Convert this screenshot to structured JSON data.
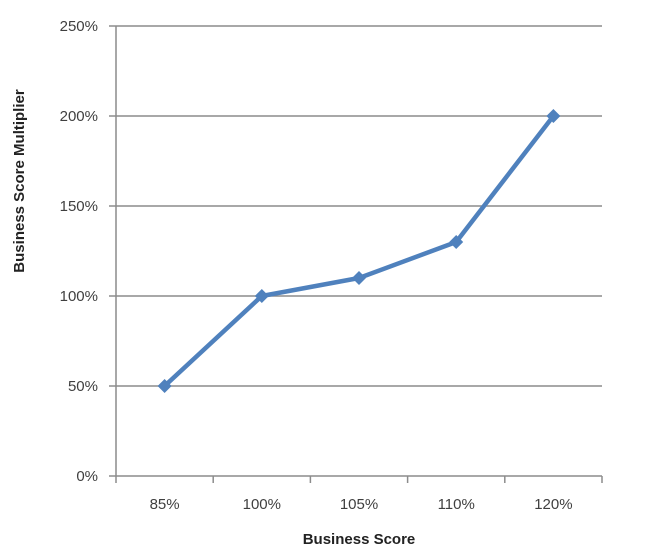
{
  "chart_data": {
    "type": "line",
    "title": "",
    "xlabel": "Business Score",
    "ylabel": "Business Score Multiplier",
    "categories": [
      "85%",
      "100%",
      "105%",
      "110%",
      "120%"
    ],
    "series": [
      {
        "values": [
          50,
          100,
          110,
          130,
          200
        ]
      }
    ],
    "ylim": [
      0,
      250
    ],
    "yticks": [
      0,
      50,
      100,
      150,
      200,
      250
    ],
    "ytick_labels": [
      "0%",
      "50%",
      "100%",
      "150%",
      "200%",
      "250%"
    ],
    "grid": true,
    "legend": "none",
    "colors": {
      "series": "#4f81bd",
      "grid": "#8c8c8c",
      "axis": "#8c8c8c"
    }
  }
}
